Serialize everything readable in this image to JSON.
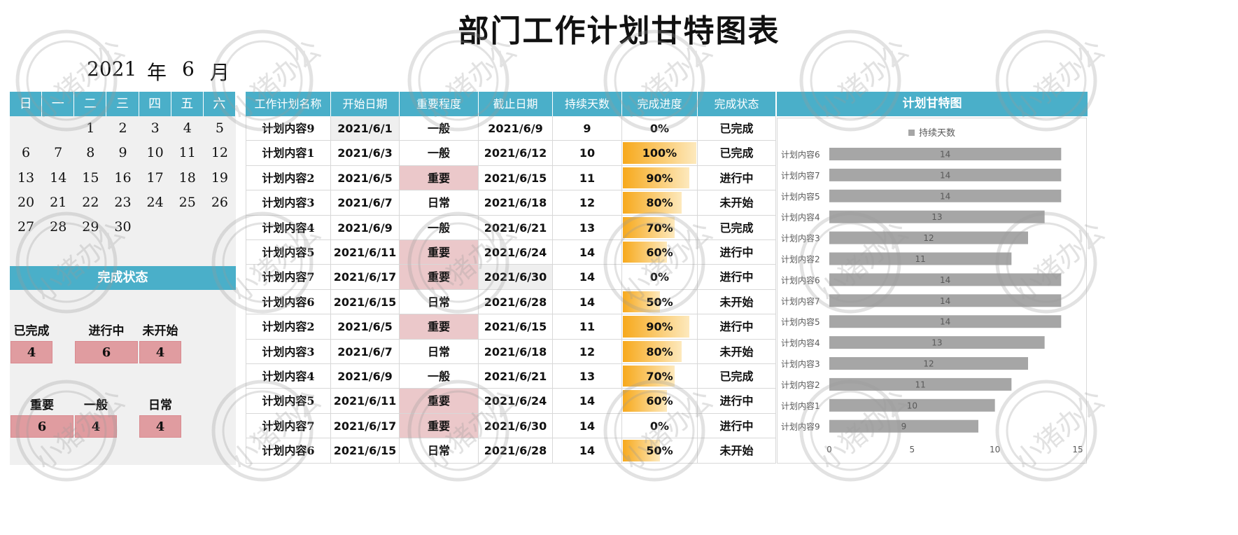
{
  "title": "部门工作计划甘特图表",
  "calendar": {
    "year": "2021",
    "year_unit": "年",
    "month": "6",
    "month_unit": "月",
    "weekdays": [
      "日",
      "一",
      "二",
      "三",
      "四",
      "五",
      "六"
    ],
    "weeks": [
      [
        "",
        "",
        "1",
        "2",
        "3",
        "4",
        "5"
      ],
      [
        "6",
        "7",
        "8",
        "9",
        "10",
        "11",
        "12"
      ],
      [
        "13",
        "14",
        "15",
        "16",
        "17",
        "18",
        "19"
      ],
      [
        "20",
        "21",
        "22",
        "23",
        "24",
        "25",
        "26"
      ],
      [
        "27",
        "28",
        "29",
        "30",
        "",
        "",
        ""
      ]
    ]
  },
  "status_panel": {
    "title": "完成状态",
    "status_counts": [
      {
        "label": "已完成",
        "value": "4"
      },
      {
        "label": "进行中",
        "value": "6"
      },
      {
        "label": "未开始",
        "value": "4"
      }
    ],
    "importance_counts": [
      {
        "label": "重要",
        "value": "6"
      },
      {
        "label": "一般",
        "value": "4"
      },
      {
        "label": "日常",
        "value": "4"
      }
    ]
  },
  "table": {
    "headers": [
      "工作计划名称",
      "开始日期",
      "重要程度",
      "截止日期",
      "持续天数",
      "完成进度",
      "完成状态"
    ],
    "rows": [
      {
        "name": "计划内容9",
        "start": "2021/6/1",
        "importance": "一般",
        "end": "2021/6/9",
        "days": "9",
        "progress_label": "0%",
        "progress": 0,
        "status": "已完成"
      },
      {
        "name": "计划内容1",
        "start": "2021/6/3",
        "importance": "一般",
        "end": "2021/6/12",
        "days": "10",
        "progress_label": "100%",
        "progress": 1.0,
        "status": "已完成"
      },
      {
        "name": "计划内容2",
        "start": "2021/6/5",
        "importance": "重要",
        "end": "2021/6/15",
        "days": "11",
        "progress_label": "90%",
        "progress": 0.9,
        "status": "进行中"
      },
      {
        "name": "计划内容3",
        "start": "2021/6/7",
        "importance": "日常",
        "end": "2021/6/18",
        "days": "12",
        "progress_label": "80%",
        "progress": 0.8,
        "status": "未开始"
      },
      {
        "name": "计划内容4",
        "start": "2021/6/9",
        "importance": "一般",
        "end": "2021/6/21",
        "days": "13",
        "progress_label": "70%",
        "progress": 0.7,
        "status": "已完成"
      },
      {
        "name": "计划内容5",
        "start": "2021/6/11",
        "importance": "重要",
        "end": "2021/6/24",
        "days": "14",
        "progress_label": "60%",
        "progress": 0.6,
        "status": "进行中"
      },
      {
        "name": "计划内容7",
        "start": "2021/6/17",
        "importance": "重要",
        "end": "2021/6/30",
        "days": "14",
        "progress_label": "0%",
        "progress": 0,
        "status": "进行中"
      },
      {
        "name": "计划内容6",
        "start": "2021/6/15",
        "importance": "日常",
        "end": "2021/6/28",
        "days": "14",
        "progress_label": "50%",
        "progress": 0.5,
        "status": "未开始"
      },
      {
        "name": "计划内容2",
        "start": "2021/6/5",
        "importance": "重要",
        "end": "2021/6/15",
        "days": "11",
        "progress_label": "90%",
        "progress": 0.9,
        "status": "进行中"
      },
      {
        "name": "计划内容3",
        "start": "2021/6/7",
        "importance": "日常",
        "end": "2021/6/18",
        "days": "12",
        "progress_label": "80%",
        "progress": 0.8,
        "status": "未开始"
      },
      {
        "name": "计划内容4",
        "start": "2021/6/9",
        "importance": "一般",
        "end": "2021/6/21",
        "days": "13",
        "progress_label": "70%",
        "progress": 0.7,
        "status": "已完成"
      },
      {
        "name": "计划内容5",
        "start": "2021/6/11",
        "importance": "重要",
        "end": "2021/6/24",
        "days": "14",
        "progress_label": "60%",
        "progress": 0.6,
        "status": "进行中"
      },
      {
        "name": "计划内容7",
        "start": "2021/6/17",
        "importance": "重要",
        "end": "2021/6/30",
        "days": "14",
        "progress_label": "0%",
        "progress": 0,
        "status": "进行中"
      },
      {
        "name": "计划内容6",
        "start": "2021/6/15",
        "importance": "日常",
        "end": "2021/6/28",
        "days": "14",
        "progress_label": "50%",
        "progress": 0.5,
        "status": "未开始"
      }
    ]
  },
  "gantt": {
    "header": "计划甘特图"
  },
  "chart_data": {
    "type": "bar",
    "orientation": "horizontal",
    "title": "",
    "legend": [
      "持续天数"
    ],
    "legend_position": "top",
    "categories": [
      "计划内容6",
      "计划内容7",
      "计划内容5",
      "计划内容4",
      "计划内容3",
      "计划内容2",
      "计划内容6",
      "计划内容7",
      "计划内容5",
      "计划内容4",
      "计划内容3",
      "计划内容2",
      "计划内容1",
      "计划内容9"
    ],
    "series": [
      {
        "name": "持续天数",
        "values": [
          14,
          14,
          14,
          13,
          12,
          11,
          14,
          14,
          14,
          13,
          12,
          11,
          10,
          9
        ]
      }
    ],
    "xlim": [
      0,
      15
    ],
    "x_ticks": [
      "0",
      "5",
      "10",
      "15"
    ],
    "bar_color": "#a6a6a6",
    "grid": false
  },
  "watermark": {
    "text": "小猪办公"
  },
  "colors": {
    "header": "#4aafc9",
    "count_box": "#e09ca0",
    "important": "#ebc8ca",
    "progress": "#f7a91c"
  }
}
